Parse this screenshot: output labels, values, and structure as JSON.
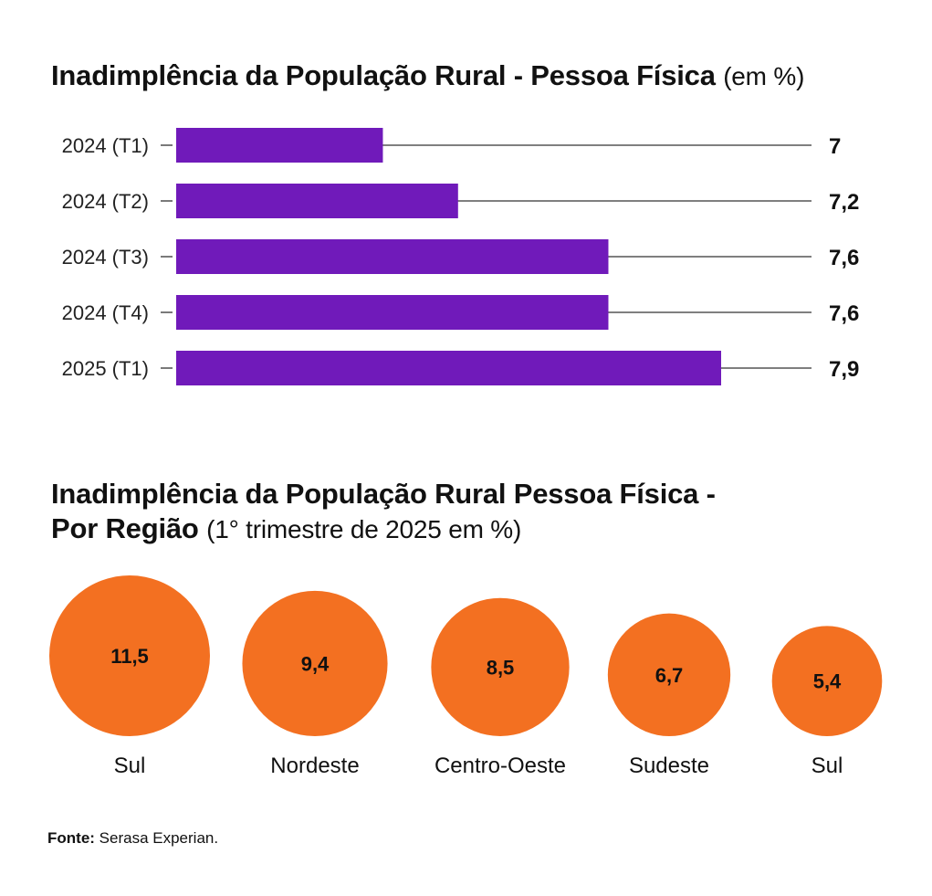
{
  "chart_data": [
    {
      "type": "bar",
      "orientation": "horizontal",
      "title": "Inadimplência da População Rural - Pessoa Física",
      "subtitle": "(em %)",
      "categories": [
        "2024 (T1)",
        "2024 (T2)",
        "2024 (T3)",
        "2024 (T4)",
        "2025 (T1)"
      ],
      "values": [
        7,
        7.2,
        7.6,
        7.6,
        7.9
      ],
      "value_labels": [
        "7",
        "7,2",
        "7,6",
        "7,6",
        "7,9"
      ],
      "bar_color": "#701ABA",
      "xlim": [
        6.45,
        8.2
      ],
      "grid": false,
      "legend": "none"
    },
    {
      "type": "bubble",
      "title_line1": "Inadimplência da População Rural Pessoa Física -",
      "title_line2": "Por Região",
      "subtitle": "(1° trimestre de 2025 em %)",
      "categories": [
        "Sul",
        "Nordeste",
        "Centro-Oeste",
        "Sudeste",
        "Sul"
      ],
      "values": [
        11.5,
        9.4,
        8.5,
        6.7,
        5.4
      ],
      "value_labels": [
        "11,5",
        "9,4",
        "8,5",
        "6,7",
        "5,4"
      ],
      "bubble_color": "#F37021",
      "legend": "none"
    }
  ],
  "source": {
    "label": "Fonte:",
    "text": "Serasa Experian."
  }
}
